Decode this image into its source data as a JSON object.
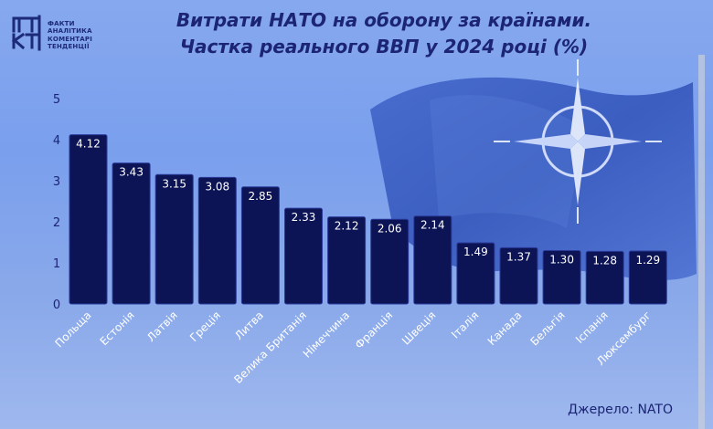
{
  "branding": {
    "logo_letters": "ФАКТ",
    "logo_lines": [
      "ФАКТИ",
      "АНАЛІТИКА",
      "КОМЕНТАРІ",
      "ТЕНДЕНЦІЇ"
    ]
  },
  "header": {
    "title_line1": "Витрати НАТО на оборону за країнами.",
    "title_line2": "Частка реального ВВП у 2024 році (%)"
  },
  "footer": {
    "source": "Джерело: NATO"
  },
  "colors": {
    "bar": "#0c1456",
    "bar_outline": "#2a3a9a",
    "text_dark": "#1c2474",
    "bar_label": "#ffffff"
  },
  "chart_data": {
    "type": "bar",
    "title": "Витрати НАТО на оборону за країнами. Частка реального ВВП у 2024 році (%)",
    "xlabel": "",
    "ylabel": "",
    "ylim": [
      0,
      5
    ],
    "yticks": [
      0,
      1,
      2,
      3,
      4,
      5
    ],
    "grid": false,
    "categories": [
      "Польща",
      "Естонія",
      "Латвія",
      "Греція",
      "Литва",
      "Велика Британія",
      "Німеччина",
      "Франція",
      "Швеція",
      "Італія",
      "Канада",
      "Бельгія",
      "Іспанія",
      "Люксембург"
    ],
    "values": [
      4.12,
      3.43,
      3.15,
      3.08,
      2.85,
      2.33,
      2.12,
      2.06,
      2.14,
      1.49,
      1.37,
      1.3,
      1.28,
      1.29
    ],
    "value_labels": [
      "4.12",
      "3.43",
      "3.15",
      "3.08",
      "2.85",
      "2.33",
      "2.12",
      "2.06",
      "2.14",
      "1.49",
      "1.37",
      "1.30",
      "1.28",
      "1.29"
    ]
  }
}
